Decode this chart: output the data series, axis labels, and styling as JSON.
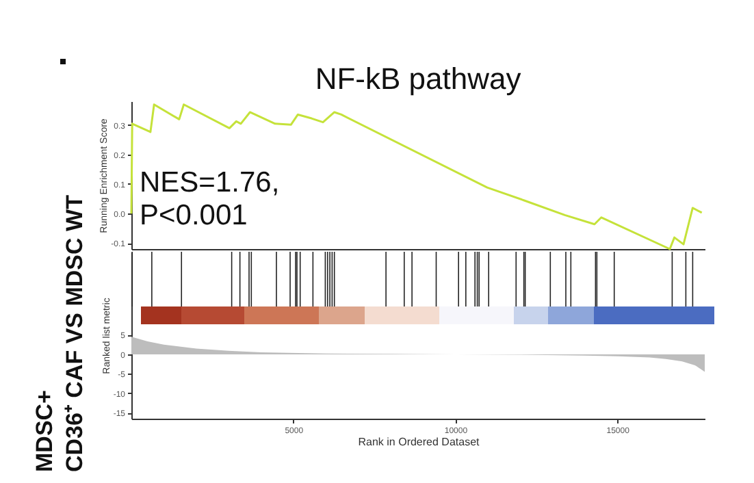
{
  "chart_data": [
    {
      "type": "line",
      "title": "NF-kB pathway",
      "ylabel": "Running Enrichment Score",
      "annotations": [
        "NES=1.76,",
        "P<0.001",
        "MDSC+",
        "CD36⁺ CAF VS MDSC WT"
      ],
      "tick_labels": "y",
      "xlim": [
        0,
        17700
      ],
      "ylim": [
        -0.12,
        0.38
      ],
      "yticks": [
        {
          "value": -0.1,
          "label": "-0.1"
        },
        {
          "value": 0,
          "label": "0.0"
        },
        0.1,
        0.2,
        0.3
      ],
      "x": [
        0,
        25,
        589,
        701,
        1476,
        1618,
        3027,
        3238,
        3379,
        3661,
        4436,
        4929,
        5140,
        5563,
        5915,
        6267,
        6479,
        10986,
        12113,
        13381,
        14297,
        14508,
        16622,
        16763,
        17045,
        17327,
        17609
      ],
      "series": [
        {
          "color": "#c5e23a",
          "values": [
            0.0,
            0.304,
            0.276,
            0.369,
            0.319,
            0.369,
            0.289,
            0.312,
            0.304,
            0.343,
            0.304,
            0.301,
            0.335,
            0.322,
            0.309,
            0.343,
            0.335,
            0.088,
            0.045,
            -0.005,
            -0.036,
            -0.013,
            -0.12,
            -0.081,
            -0.104,
            0.019,
            0.003
          ]
        }
      ]
    },
    {
      "type": "area",
      "xlabel": "Rank in Ordered Dataset",
      "ylabel": "Ranked list metric",
      "xlim": [
        0,
        17700
      ],
      "ylim": [
        -16.5,
        26.3
      ],
      "xticks": [
        5000,
        10000,
        15000
      ],
      "yticks": [
        5,
        0,
        -5,
        -10,
        -15
      ],
      "x": [
        0,
        500,
        1000,
        2000,
        3000,
        4000,
        6000,
        8000,
        10000,
        12000,
        14000,
        15000,
        16000,
        16500,
        17000,
        17400,
        17700
      ],
      "series": [
        {
          "color": "#bdbdbd",
          "values": [
            4.5,
            3.3,
            2.5,
            1.5,
            0.9,
            0.5,
            0.2,
            0.1,
            0,
            -0.1,
            -0.3,
            -0.5,
            -0.8,
            -1.2,
            -1.8,
            -2.8,
            -4.5
          ]
        }
      ],
      "ref_lines": [
        {
          "axis": "x",
          "value": 25
        },
        {
          "axis": "x",
          "value": 631
        },
        {
          "axis": "x",
          "value": 1547
        },
        {
          "axis": "x",
          "value": 3097
        },
        {
          "axis": "x",
          "value": 3351
        },
        {
          "axis": "x",
          "value": 3633
        },
        {
          "axis": "x",
          "value": 3703
        },
        {
          "axis": "x",
          "value": 4478
        },
        {
          "axis": "x",
          "value": 4901
        },
        {
          "axis": "x",
          "value": 5070
        },
        {
          "axis": "x",
          "value": 5112
        },
        {
          "axis": "x",
          "value": 5211
        },
        {
          "axis": "x",
          "value": 5605
        },
        {
          "axis": "x",
          "value": 5986
        },
        {
          "axis": "x",
          "value": 6056
        },
        {
          "axis": "x",
          "value": 6127
        },
        {
          "axis": "x",
          "value": 6197
        },
        {
          "axis": "x",
          "value": 6267
        },
        {
          "axis": "x",
          "value": 7860
        },
        {
          "axis": "x",
          "value": 8423
        },
        {
          "axis": "x",
          "value": 8663
        },
        {
          "axis": "x",
          "value": 9410
        },
        {
          "axis": "x",
          "value": 10100
        },
        {
          "axis": "x",
          "value": 10325
        },
        {
          "axis": "x",
          "value": 10607
        },
        {
          "axis": "x",
          "value": 10678
        },
        {
          "axis": "x",
          "value": 10734
        },
        {
          "axis": "x",
          "value": 11030
        },
        {
          "axis": "x",
          "value": 11876
        },
        {
          "axis": "x",
          "value": 12116
        },
        {
          "axis": "x",
          "value": 12158
        },
        {
          "axis": "x",
          "value": 12933
        },
        {
          "axis": "x",
          "value": 13412
        },
        {
          "axis": "x",
          "value": 13567
        },
        {
          "axis": "x",
          "value": 14328
        },
        {
          "axis": "x",
          "value": 14370
        },
        {
          "axis": "x",
          "value": 14906
        },
        {
          "axis": "x",
          "value": 16695
        },
        {
          "axis": "x",
          "value": 17117
        },
        {
          "axis": "x",
          "value": 17328
        }
      ]
    }
  ]
}
